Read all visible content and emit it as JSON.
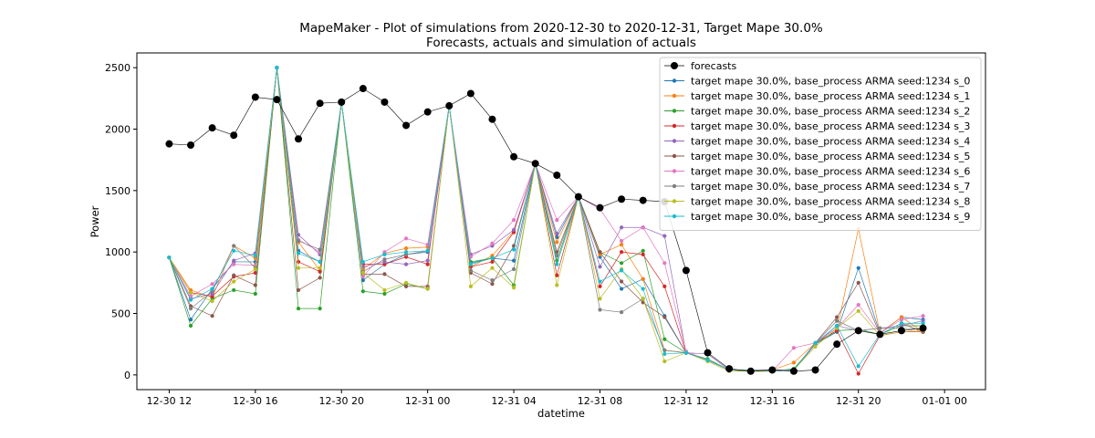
{
  "chart_data": {
    "type": "line",
    "title": "MapeMaker - Plot of simulations from 2020-12-30 to 2020-12-31, Target Mape 30.0%",
    "subtitle": "Forecasts, actuals and simulation of actuals",
    "xlabel": "datetime",
    "ylabel": "Power",
    "ylim": [
      -120,
      2620
    ],
    "xlim_hours": [
      10.5,
      49.9
    ],
    "x_ticks": [
      {
        "label": "12-30 12",
        "hour": 12
      },
      {
        "label": "12-30 16",
        "hour": 16
      },
      {
        "label": "12-30 20",
        "hour": 20
      },
      {
        "label": "12-31 00",
        "hour": 24
      },
      {
        "label": "12-31 04",
        "hour": 28
      },
      {
        "label": "12-31 08",
        "hour": 32
      },
      {
        "label": "12-31 12",
        "hour": 36
      },
      {
        "label": "12-31 16",
        "hour": 40
      },
      {
        "label": "12-31 20",
        "hour": 44
      },
      {
        "label": "01-01 00",
        "hour": 48
      }
    ],
    "y_ticks": [
      0,
      500,
      1000,
      1500,
      2000,
      2500
    ],
    "x_hours": [
      12,
      13,
      14,
      15,
      16,
      17,
      18,
      19,
      20,
      21,
      22,
      23,
      24,
      25,
      26,
      27,
      28,
      29,
      30,
      31,
      32,
      33,
      34,
      35,
      36,
      37,
      38,
      39,
      40,
      41,
      42,
      43,
      44,
      45,
      46,
      47
    ],
    "legend_position": "top-right",
    "grid": false,
    "series": [
      {
        "name": "forecasts",
        "color": "#000000",
        "marker": "large",
        "values": [
          1880,
          1870,
          2010,
          1950,
          2260,
          2240,
          1920,
          2210,
          2220,
          2330,
          2220,
          2030,
          2140,
          2190,
          2290,
          2080,
          1775,
          1720,
          1625,
          1450,
          1360,
          1430,
          1420,
          1410,
          850,
          180,
          50,
          30,
          40,
          30,
          40,
          250,
          360,
          330,
          360,
          380
        ]
      },
      {
        "name": "target mape 30.0%, base_process ARMA  seed:1234 s_0",
        "color": "#1f77b4",
        "values": [
          955,
          450,
          700,
          920,
          920,
          2500,
          1010,
          920,
          2220,
          770,
          900,
          980,
          1000,
          2190,
          910,
          950,
          930,
          1720,
          1120,
          1450,
          960,
          700,
          780,
          480,
          180,
          120,
          40,
          40,
          40,
          40,
          250,
          350,
          870,
          340,
          470,
          450
        ]
      },
      {
        "name": "target mape 30.0%, base_process ARMA  seed:1234 s_1",
        "color": "#ff7f0e",
        "values": [
          955,
          690,
          630,
          1050,
          950,
          2500,
          1080,
          850,
          2220,
          860,
          990,
          1030,
          1040,
          2190,
          880,
          970,
          1170,
          1720,
          1080,
          1450,
          980,
          1060,
          780,
          200,
          180,
          120,
          40,
          40,
          40,
          100,
          260,
          360,
          1190,
          340,
          470,
          350
        ]
      },
      {
        "name": "target mape 30.0%, base_process ARMA  seed:1234 s_2",
        "color": "#2ca02c",
        "values": [
          955,
          400,
          620,
          690,
          660,
          2500,
          540,
          540,
          2220,
          680,
          660,
          740,
          700,
          2190,
          920,
          950,
          730,
          1720,
          930,
          1450,
          1000,
          910,
          1010,
          290,
          180,
          130,
          40,
          30,
          30,
          50,
          250,
          360,
          370,
          330,
          400,
          400
        ]
      },
      {
        "name": "target mape 30.0%, base_process ARMA  seed:1234 s_3",
        "color": "#d62728",
        "values": [
          955,
          670,
          640,
          800,
          830,
          2500,
          920,
          840,
          2220,
          900,
          900,
          960,
          900,
          2190,
          880,
          920,
          1160,
          1720,
          810,
          1450,
          720,
          1000,
          980,
          720,
          180,
          120,
          40,
          40,
          30,
          40,
          260,
          360,
          10,
          320,
          350,
          350
        ]
      },
      {
        "name": "target mape 30.0%, base_process ARMA  seed:1234 s_4",
        "color": "#9467bd",
        "values": [
          955,
          620,
          660,
          930,
          990,
          2500,
          1140,
          980,
          2220,
          880,
          920,
          900,
          930,
          2190,
          980,
          1050,
          1180,
          1720,
          1150,
          1450,
          880,
          1200,
          1200,
          1130,
          180,
          170,
          40,
          40,
          40,
          40,
          250,
          400,
          360,
          380,
          400,
          440
        ]
      },
      {
        "name": "target mape 30.0%, base_process ARMA  seed:1234 s_5",
        "color": "#8c564b",
        "values": [
          955,
          560,
          480,
          810,
          730,
          2500,
          690,
          790,
          2220,
          820,
          820,
          720,
          720,
          2190,
          830,
          740,
          1050,
          1720,
          1000,
          1450,
          1000,
          760,
          590,
          470,
          180,
          120,
          40,
          30,
          30,
          40,
          260,
          470,
          750,
          330,
          420,
          350
        ]
      },
      {
        "name": "target mape 30.0%, base_process ARMA  seed:1234 s_6",
        "color": "#e377c2",
        "values": [
          955,
          640,
          740,
          900,
          890,
          2500,
          1100,
          1000,
          2220,
          800,
          1000,
          1110,
          1060,
          2190,
          960,
          1070,
          1260,
          1720,
          1260,
          1450,
          1350,
          1090,
          1200,
          910,
          190,
          120,
          40,
          40,
          30,
          220,
          260,
          380,
          570,
          340,
          450,
          480
        ]
      },
      {
        "name": "target mape 30.0%, base_process ARMA  seed:1234 s_7",
        "color": "#7f7f7f",
        "values": [
          955,
          540,
          680,
          1050,
          870,
          2500,
          1090,
          1020,
          2220,
          840,
          940,
          980,
          1010,
          2190,
          850,
          770,
          860,
          1720,
          970,
          1450,
          530,
          510,
          620,
          200,
          180,
          120,
          40,
          40,
          30,
          40,
          260,
          440,
          360,
          380,
          380,
          370
        ]
      },
      {
        "name": "target mape 30.0%, base_process ARMA  seed:1234 s_8",
        "color": "#bcbd22",
        "values": [
          955,
          670,
          600,
          760,
          860,
          2500,
          870,
          870,
          2220,
          830,
          690,
          750,
          700,
          2190,
          720,
          870,
          710,
          1720,
          730,
          1450,
          620,
          860,
          620,
          110,
          180,
          110,
          30,
          30,
          30,
          40,
          230,
          380,
          520,
          320,
          350,
          360
        ]
      },
      {
        "name": "target mape 30.0%, base_process ARMA  seed:1234 s_9",
        "color": "#17becf",
        "values": [
          955,
          610,
          700,
          1010,
          970,
          2500,
          990,
          920,
          2220,
          920,
          980,
          1000,
          1010,
          2190,
          900,
          950,
          1020,
          1720,
          900,
          1450,
          760,
          850,
          700,
          170,
          180,
          120,
          40,
          40,
          30,
          40,
          260,
          400,
          70,
          330,
          420,
          420
        ]
      }
    ]
  }
}
